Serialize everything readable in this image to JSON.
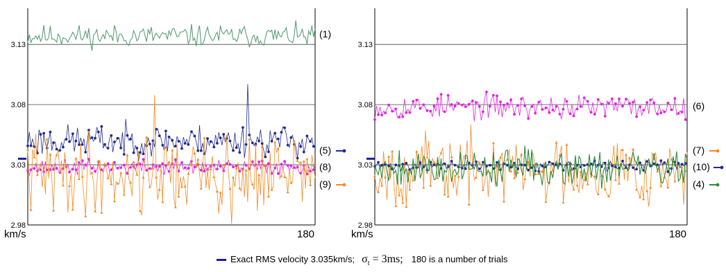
{
  "caption": {
    "text1": "Exact RMS velocity  3.035km/s;",
    "sigma_symbol": "σ",
    "sigma_sub": "t",
    "sigma_value": " = 3ms;",
    "text2": "180 is a number of trials",
    "line_color": "#1a1aa6"
  },
  "chart_data": [
    {
      "type": "line",
      "xlabel": "km/s",
      "x_end_label": "180",
      "xlim": [
        1,
        180
      ],
      "ylim": [
        2.98,
        3.16
      ],
      "yticks": [
        2.98,
        3.03,
        3.08,
        3.13
      ],
      "ytick_labels": [
        "2.98",
        "3.03",
        "3.08",
        "3.13"
      ],
      "reference_value": 3.035,
      "series": [
        {
          "name": "(1)",
          "color": "#5a9e78",
          "marker": "none",
          "mean": 3.137,
          "amp": 0.0045,
          "seed": 11
        },
        {
          "name": "(5)",
          "color": "#1f2a8c",
          "marker": "dot",
          "mean": 3.05,
          "amp": 0.0065,
          "seed": 23,
          "spike": [
            138,
            3.097
          ]
        },
        {
          "name": "(8)",
          "color": "#e022e0",
          "marker": "dot",
          "mean": 3.028,
          "amp": 0.003,
          "seed": 37
        },
        {
          "name": "(9)",
          "color": "#f08a24",
          "marker": "tri",
          "mean": 3.022,
          "amp": 0.016,
          "seed": 41,
          "spike": [
            80,
            3.088
          ],
          "dip": [
            128,
            2.981
          ]
        }
      ]
    },
    {
      "type": "line",
      "xlabel": "km/s",
      "x_end_label": "180",
      "xlim": [
        1,
        180
      ],
      "ylim": [
        2.98,
        3.16
      ],
      "yticks": [
        2.98,
        3.03,
        3.08,
        3.13
      ],
      "ytick_labels": [
        "2.98",
        "3.03",
        "3.08",
        "3.13"
      ],
      "reference_value": 3.035,
      "series": [
        {
          "name": "(6)",
          "color": "#e022e0",
          "marker": "dot",
          "mean": 3.078,
          "amp": 0.005,
          "seed": 53
        },
        {
          "name": "(7)",
          "color": "#f08a24",
          "marker": "tri",
          "mean": 3.026,
          "amp": 0.014,
          "seed": 67
        },
        {
          "name": "(10)",
          "color": "#1f2a8c",
          "marker": "dot",
          "mean": 3.029,
          "amp": 0.002,
          "seed": 71
        },
        {
          "name": "(4)",
          "color": "#2d8a3a",
          "marker": "none",
          "mean": 3.028,
          "amp": 0.008,
          "seed": 79
        }
      ]
    }
  ]
}
